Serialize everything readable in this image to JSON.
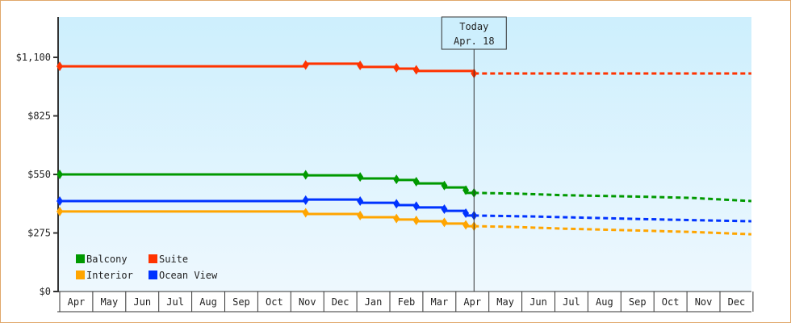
{
  "chart_data": {
    "type": "line",
    "title": "",
    "xlabel": "",
    "ylabel": "",
    "ylim": [
      0,
      1200
    ],
    "y_ticks": [
      {
        "value": 0,
        "label": "$0"
      },
      {
        "value": 275,
        "label": "$275"
      },
      {
        "value": 550,
        "label": "$550"
      },
      {
        "value": 825,
        "label": "$825"
      },
      {
        "value": 1100,
        "label": "$1,100"
      }
    ],
    "x_ticks": [
      "Apr",
      "May",
      "Jun",
      "Jul",
      "Aug",
      "Sep",
      "Oct",
      "Nov",
      "Dec",
      "Jan",
      "Feb",
      "Mar",
      "Apr",
      "May",
      "Jun",
      "Jul",
      "Aug",
      "Sep",
      "Oct",
      "Nov",
      "Dec"
    ],
    "today_marker": {
      "line1": "Today",
      "line2": "Apr. 18",
      "x_month_index": 12.55
    },
    "grid": false,
    "legend_position": "bottom-left inside",
    "legend": [
      {
        "name": "Balcony",
        "color": "#009900"
      },
      {
        "name": "Suite",
        "color": "#ff3300"
      },
      {
        "name": "Interior",
        "color": "#ffa500"
      },
      {
        "name": "Ocean View",
        "color": "#0033ff"
      }
    ],
    "series": [
      {
        "name": "Suite",
        "color": "#ff3300",
        "historical": [
          [
            0,
            1058
          ],
          [
            7.45,
            1058
          ],
          [
            7.45,
            1070
          ],
          [
            9.1,
            1070
          ],
          [
            9.1,
            1055
          ],
          [
            10.2,
            1055
          ],
          [
            10.2,
            1047
          ],
          [
            10.8,
            1047
          ],
          [
            10.8,
            1036
          ],
          [
            12.55,
            1036
          ],
          [
            12.55,
            1024
          ]
        ],
        "markers": [
          [
            0,
            1058
          ],
          [
            7.45,
            1064
          ],
          [
            9.1,
            1062
          ],
          [
            10.2,
            1051
          ],
          [
            10.8,
            1041
          ],
          [
            12.55,
            1024
          ]
        ],
        "forecast": [
          [
            12.55,
            1024
          ],
          [
            20.95,
            1024
          ]
        ]
      },
      {
        "name": "Balcony",
        "color": "#009900",
        "historical": [
          [
            0,
            550
          ],
          [
            7.45,
            550
          ],
          [
            7.45,
            546
          ],
          [
            9.1,
            546
          ],
          [
            9.1,
            531
          ],
          [
            10.2,
            531
          ],
          [
            10.2,
            524
          ],
          [
            10.8,
            524
          ],
          [
            10.8,
            508
          ],
          [
            11.65,
            508
          ],
          [
            11.65,
            489
          ],
          [
            12.3,
            489
          ],
          [
            12.3,
            463
          ],
          [
            12.55,
            463
          ]
        ],
        "markers": [
          [
            0,
            550
          ],
          [
            7.45,
            548
          ],
          [
            9.1,
            538
          ],
          [
            10.2,
            527
          ],
          [
            10.8,
            516
          ],
          [
            11.65,
            498
          ],
          [
            12.3,
            476
          ],
          [
            12.55,
            463
          ]
        ],
        "forecast": [
          [
            12.55,
            463
          ],
          [
            13.8,
            460
          ],
          [
            15.3,
            452
          ],
          [
            17.2,
            447
          ],
          [
            19.1,
            440
          ],
          [
            20.95,
            425
          ]
        ]
      },
      {
        "name": "Ocean View",
        "color": "#0033ff",
        "historical": [
          [
            0,
            425
          ],
          [
            7.45,
            425
          ],
          [
            7.45,
            432
          ],
          [
            9.1,
            432
          ],
          [
            9.1,
            417
          ],
          [
            10.2,
            417
          ],
          [
            10.2,
            406
          ],
          [
            10.8,
            406
          ],
          [
            10.8,
            395
          ],
          [
            11.65,
            395
          ],
          [
            11.65,
            379
          ],
          [
            12.3,
            379
          ],
          [
            12.3,
            357
          ],
          [
            12.55,
            357
          ]
        ],
        "markers": [
          [
            0,
            425
          ],
          [
            7.45,
            429
          ],
          [
            9.1,
            425
          ],
          [
            10.2,
            412
          ],
          [
            10.8,
            401
          ],
          [
            11.65,
            387
          ],
          [
            12.3,
            368
          ],
          [
            12.55,
            357
          ]
        ],
        "forecast": [
          [
            12.55,
            357
          ],
          [
            14.5,
            352
          ],
          [
            16.3,
            345
          ],
          [
            18.3,
            338
          ],
          [
            20.95,
            330
          ]
        ]
      },
      {
        "name": "Interior",
        "color": "#ffa500",
        "historical": [
          [
            0,
            376
          ],
          [
            7.45,
            376
          ],
          [
            7.45,
            364
          ],
          [
            9.1,
            364
          ],
          [
            9.1,
            349
          ],
          [
            10.2,
            349
          ],
          [
            10.2,
            338
          ],
          [
            10.8,
            338
          ],
          [
            10.8,
            330
          ],
          [
            11.65,
            330
          ],
          [
            11.65,
            319
          ],
          [
            12.3,
            319
          ],
          [
            12.3,
            307
          ],
          [
            12.55,
            307
          ]
        ],
        "markers": [
          [
            0,
            376
          ],
          [
            7.45,
            370
          ],
          [
            9.1,
            357
          ],
          [
            10.2,
            343
          ],
          [
            10.8,
            334
          ],
          [
            11.65,
            325
          ],
          [
            12.3,
            313
          ],
          [
            12.55,
            307
          ]
        ],
        "forecast": [
          [
            12.55,
            307
          ],
          [
            13.8,
            303
          ],
          [
            15.3,
            295
          ],
          [
            17.2,
            288
          ],
          [
            19.1,
            280
          ],
          [
            20.95,
            269
          ]
        ]
      }
    ]
  }
}
